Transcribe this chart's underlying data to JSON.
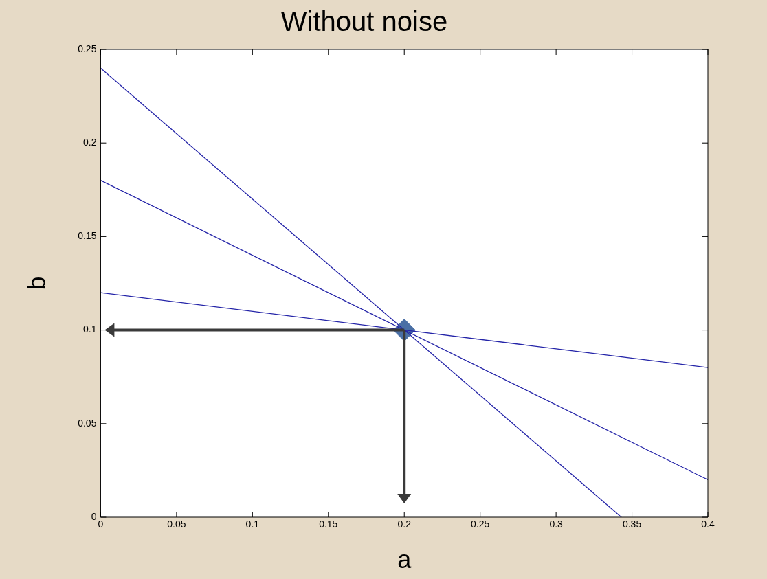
{
  "chart_data": {
    "type": "line",
    "title": "Without noise",
    "xlabel": "a",
    "ylabel": "b",
    "xlim": [
      0,
      0.4
    ],
    "ylim": [
      0,
      0.25
    ],
    "xticks": [
      0,
      0.05,
      0.1,
      0.15,
      0.2,
      0.25,
      0.3,
      0.35,
      0.4
    ],
    "yticks": [
      0,
      0.05,
      0.1,
      0.15,
      0.2,
      0.25
    ],
    "grid": false,
    "legend": false,
    "line_style": "solid",
    "marker": "none",
    "series": [
      {
        "color": "#2424a8",
        "x": [
          0,
          0.343
        ],
        "values": [
          0.24,
          0
        ]
      },
      {
        "color": "#2424a8",
        "x": [
          0,
          0.4
        ],
        "values": [
          0.18,
          0.02
        ]
      },
      {
        "color": "#2424a8",
        "x": [
          0,
          0.4
        ],
        "values": [
          0.12,
          0.08
        ]
      },
      {
        "type": "scatter",
        "marker": "diamond",
        "color": "#4a6fa5",
        "x": [
          0.2
        ],
        "values": [
          0.1
        ]
      }
    ]
  }
}
